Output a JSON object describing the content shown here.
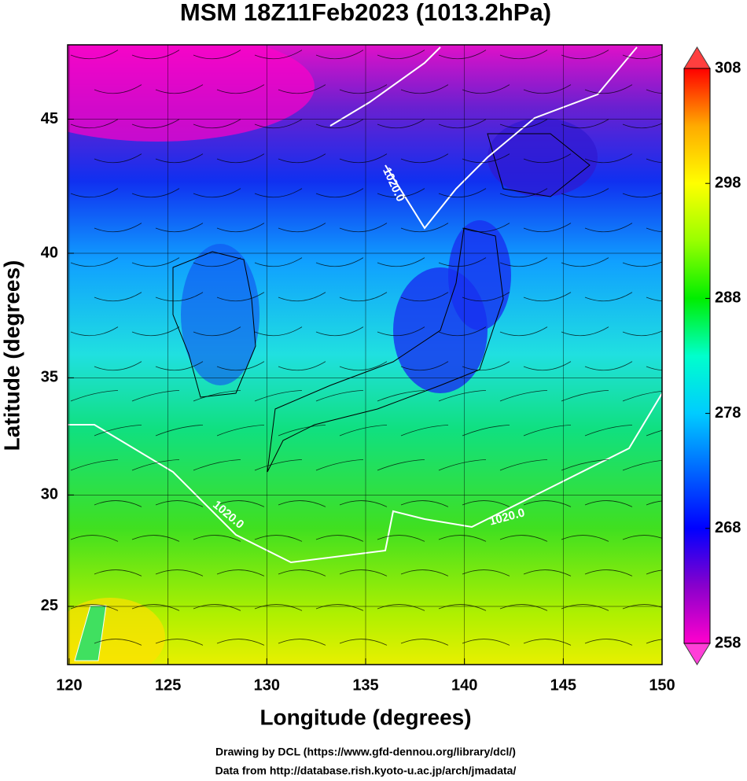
{
  "chart_data": {
    "type": "map",
    "title": "MSM 18Z11Feb2023 (1013.2hPa)",
    "xlabel": "Longitude (degrees)",
    "ylabel": "Latitude  (degrees)",
    "xlim": [
      120,
      150
    ],
    "ylim": [
      22.3,
      47.6
    ],
    "xticks": [
      120,
      125,
      130,
      135,
      140,
      145,
      150
    ],
    "yticks": [
      25,
      30,
      35,
      40,
      45
    ],
    "grid": true,
    "contour_labels": [
      "1020.0",
      "1020.0",
      "1020.0"
    ],
    "colorbar": {
      "lim": [
        258,
        308
      ],
      "ticks": [
        258,
        268,
        278,
        288,
        298,
        308
      ],
      "colors": [
        "#ff00cc",
        "#8800cc",
        "#0000ff",
        "#0066ff",
        "#00ccff",
        "#00ffcc",
        "#00ee00",
        "#99ff00",
        "#ffff00",
        "#ffaa00",
        "#ff0000"
      ]
    }
  },
  "footer": [
    "Drawing by DCL (https://www.gfd-dennou.org/library/dcl/)",
    "Data from http://database.rish.kyoto-u.ac.jp/arch/jmadata/"
  ]
}
